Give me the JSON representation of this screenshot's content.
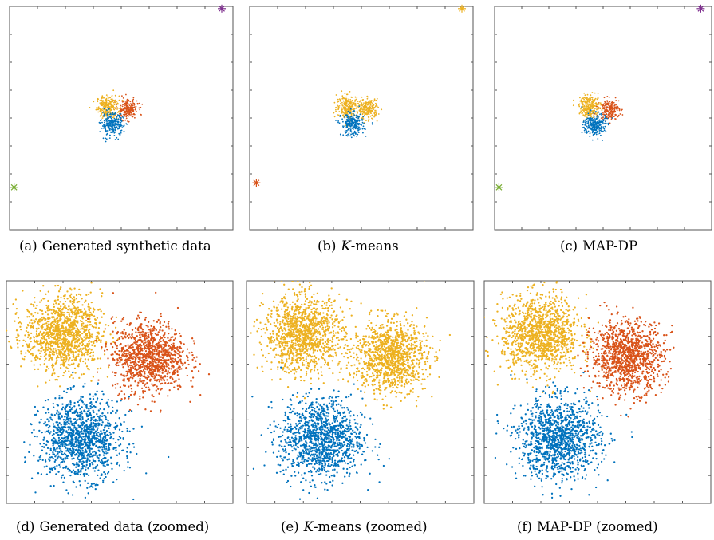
{
  "figure": {
    "panels": [
      {
        "id": "a",
        "tag": "(a)",
        "k": "",
        "text": "Generated synthetic data"
      },
      {
        "id": "b",
        "tag": "(b)",
        "k": "K",
        "text": "-means"
      },
      {
        "id": "c",
        "tag": "(c)",
        "k": "",
        "text": "MAP-DP"
      },
      {
        "id": "d",
        "tag": "(d)",
        "k": "",
        "text": "Generated data (zoomed)"
      },
      {
        "id": "e",
        "tag": "(e)",
        "k": "K",
        "text": "-means (zoomed)"
      },
      {
        "id": "f",
        "tag": "(f)",
        "k": "",
        "text": "MAP-DP (zoomed)"
      }
    ]
  },
  "colors": {
    "blue": "#0072BD",
    "orange": "#D95319",
    "yellow": "#EDB120",
    "purple": "#7E2F8E",
    "green": "#77AC30",
    "axis": "#555555"
  },
  "chart_data": [
    {
      "panel": "a",
      "type": "scatter",
      "xlim": [
        0,
        1
      ],
      "ylim": [
        0,
        1
      ],
      "clusters": [
        {
          "color": "yellow",
          "center": [
            0.44,
            0.55
          ],
          "sd": 0.025,
          "n": 260
        },
        {
          "color": "orange",
          "center": [
            0.53,
            0.54
          ],
          "sd": 0.022,
          "n": 220
        },
        {
          "color": "blue",
          "center": [
            0.46,
            0.47
          ],
          "sd": 0.025,
          "n": 260
        }
      ],
      "outliers": [
        {
          "color": "purple",
          "x": 0.95,
          "y": 0.99
        },
        {
          "color": "green",
          "x": 0.02,
          "y": 0.19
        }
      ]
    },
    {
      "panel": "b",
      "type": "scatter",
      "xlim": [
        0,
        1
      ],
      "ylim": [
        0,
        1
      ],
      "clusters": [
        {
          "color": "yellow",
          "center": [
            0.44,
            0.55
          ],
          "sd": 0.025,
          "n": 260
        },
        {
          "color": "yellow",
          "center": [
            0.53,
            0.54
          ],
          "sd": 0.022,
          "n": 220
        },
        {
          "color": "blue",
          "center": [
            0.46,
            0.47
          ],
          "sd": 0.025,
          "n": 260
        }
      ],
      "outliers": [
        {
          "color": "yellow",
          "x": 0.95,
          "y": 0.99
        },
        {
          "color": "orange",
          "x": 0.03,
          "y": 0.21
        }
      ]
    },
    {
      "panel": "c",
      "type": "scatter",
      "xlim": [
        0,
        1
      ],
      "ylim": [
        0,
        1
      ],
      "clusters": [
        {
          "color": "yellow",
          "center": [
            0.44,
            0.55
          ],
          "sd": 0.025,
          "n": 260
        },
        {
          "color": "orange",
          "center": [
            0.53,
            0.54
          ],
          "sd": 0.022,
          "n": 220
        },
        {
          "color": "blue",
          "center": [
            0.46,
            0.47
          ],
          "sd": 0.025,
          "n": 260
        }
      ],
      "outliers": [
        {
          "color": "purple",
          "x": 0.95,
          "y": 0.99
        },
        {
          "color": "green",
          "x": 0.02,
          "y": 0.19
        }
      ]
    },
    {
      "panel": "d",
      "type": "scatter",
      "xlim": [
        0,
        1
      ],
      "ylim": [
        0,
        1
      ],
      "clusters": [
        {
          "color": "yellow",
          "center": [
            0.25,
            0.76
          ],
          "sd": 0.085,
          "n": 1200
        },
        {
          "color": "orange",
          "center": [
            0.63,
            0.66
          ],
          "sd": 0.08,
          "n": 1100
        },
        {
          "color": "blue",
          "center": [
            0.33,
            0.29
          ],
          "sd": 0.09,
          "n": 1200
        }
      ],
      "outliers": []
    },
    {
      "panel": "e",
      "type": "scatter",
      "xlim": [
        0,
        1
      ],
      "ylim": [
        0,
        1
      ],
      "clusters": [
        {
          "color": "yellow",
          "center": [
            0.25,
            0.76
          ],
          "sd": 0.085,
          "n": 1200
        },
        {
          "color": "yellow",
          "center": [
            0.63,
            0.66
          ],
          "sd": 0.08,
          "n": 1100
        },
        {
          "color": "blue",
          "center": [
            0.33,
            0.29
          ],
          "sd": 0.09,
          "n": 1200
        }
      ],
      "outliers": []
    },
    {
      "panel": "f",
      "type": "scatter",
      "xlim": [
        0,
        1
      ],
      "ylim": [
        0,
        1
      ],
      "clusters": [
        {
          "color": "yellow",
          "center": [
            0.25,
            0.76
          ],
          "sd": 0.085,
          "n": 1200
        },
        {
          "color": "orange",
          "center": [
            0.63,
            0.66
          ],
          "sd": 0.08,
          "n": 1100
        },
        {
          "color": "blue",
          "center": [
            0.33,
            0.29
          ],
          "sd": 0.09,
          "n": 1200
        }
      ],
      "outliers": []
    }
  ]
}
